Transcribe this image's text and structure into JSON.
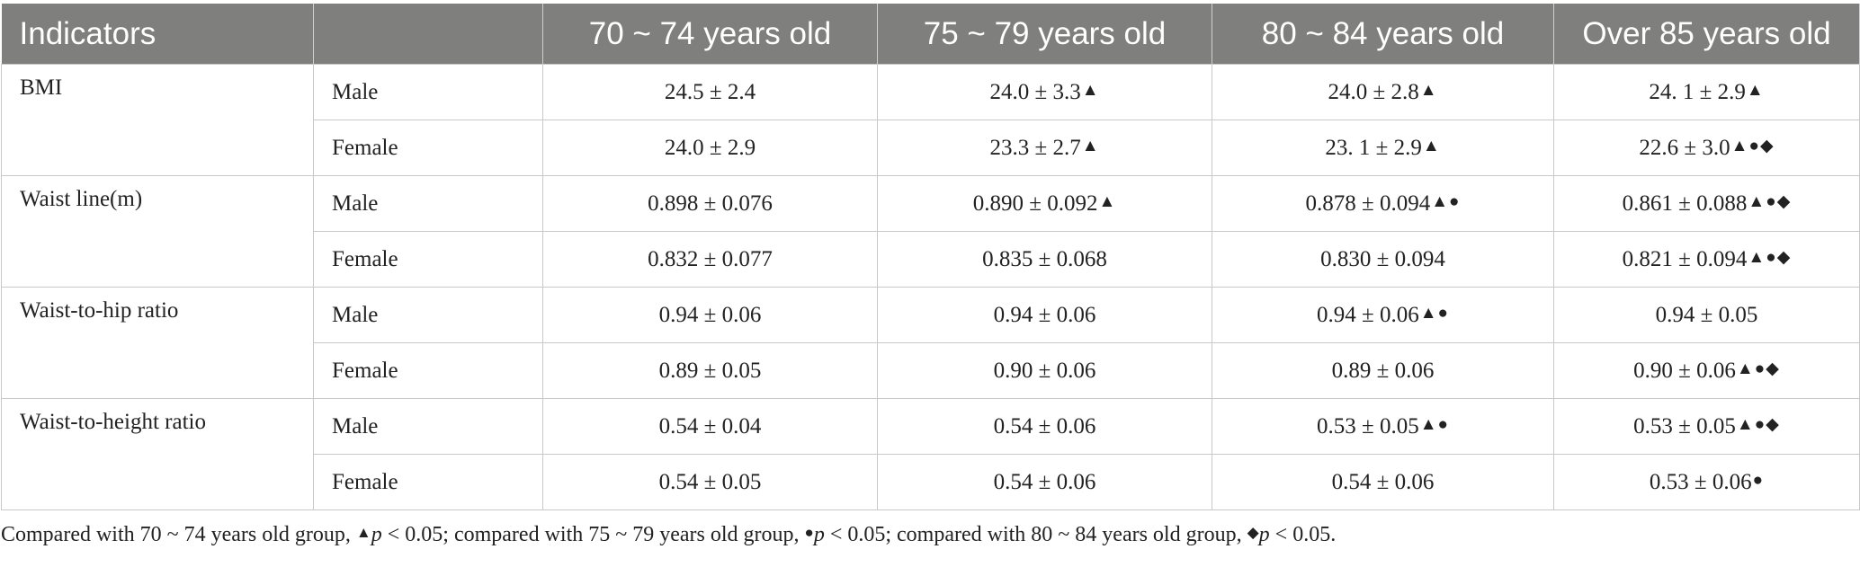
{
  "table": {
    "headers": [
      "Indicators",
      "",
      "70 ~ 74 years old",
      "75 ~ 79 years old",
      "80 ~ 84 years old",
      "Over 85 years old"
    ],
    "groups": [
      {
        "indicator": "BMI",
        "rows": [
          {
            "sex": "Male",
            "cells": [
              {
                "value": "24.5 ± 2.4",
                "marks": ""
              },
              {
                "value": "24.0 ± 3.3",
                "marks": "▲"
              },
              {
                "value": "24.0 ± 2.8",
                "marks": "▲"
              },
              {
                "value": "24. 1 ± 2.9",
                "marks": "▲"
              }
            ]
          },
          {
            "sex": "Female",
            "cells": [
              {
                "value": "24.0 ± 2.9",
                "marks": ""
              },
              {
                "value": "23.3 ± 2.7",
                "marks": "▲"
              },
              {
                "value": "23. 1 ± 2.9",
                "marks": "▲"
              },
              {
                "value": "22.6 ± 3.0",
                "marks": "▲●◆"
              }
            ]
          }
        ]
      },
      {
        "indicator": "Waist line(m)",
        "rows": [
          {
            "sex": "Male",
            "cells": [
              {
                "value": "0.898 ± 0.076",
                "marks": ""
              },
              {
                "value": "0.890 ± 0.092",
                "marks": "▲"
              },
              {
                "value": "0.878 ± 0.094",
                "marks": "▲●"
              },
              {
                "value": "0.861 ± 0.088",
                "marks": "▲●◆"
              }
            ]
          },
          {
            "sex": "Female",
            "cells": [
              {
                "value": "0.832 ± 0.077",
                "marks": ""
              },
              {
                "value": "0.835 ± 0.068",
                "marks": ""
              },
              {
                "value": "0.830 ± 0.094",
                "marks": ""
              },
              {
                "value": "0.821 ± 0.094",
                "marks": "▲●◆"
              }
            ]
          }
        ]
      },
      {
        "indicator": "Waist-to-hip ratio",
        "rows": [
          {
            "sex": "Male",
            "cells": [
              {
                "value": "0.94 ± 0.06",
                "marks": ""
              },
              {
                "value": "0.94 ± 0.06",
                "marks": ""
              },
              {
                "value": "0.94 ± 0.06",
                "marks": "▲●"
              },
              {
                "value": "0.94 ± 0.05",
                "marks": ""
              }
            ]
          },
          {
            "sex": "Female",
            "cells": [
              {
                "value": "0.89 ± 0.05",
                "marks": ""
              },
              {
                "value": "0.90 ± 0.06",
                "marks": ""
              },
              {
                "value": "0.89 ± 0.06",
                "marks": ""
              },
              {
                "value": "0.90 ± 0.06",
                "marks": "▲●◆"
              }
            ]
          }
        ]
      },
      {
        "indicator": "Waist-to-height ratio",
        "rows": [
          {
            "sex": "Male",
            "cells": [
              {
                "value": "0.54 ± 0.04",
                "marks": ""
              },
              {
                "value": "0.54 ± 0.06",
                "marks": ""
              },
              {
                "value": "0.53 ± 0.05",
                "marks": "▲●"
              },
              {
                "value": "0.53 ± 0.05",
                "marks": "▲●◆"
              }
            ]
          },
          {
            "sex": "Female",
            "cells": [
              {
                "value": "0.54 ± 0.05",
                "marks": ""
              },
              {
                "value": "0.54 ± 0.06",
                "marks": ""
              },
              {
                "value": "0.54 ± 0.06",
                "marks": ""
              },
              {
                "value": "0.53 ± 0.06",
                "marks": "●"
              }
            ]
          }
        ]
      }
    ]
  },
  "footnote": {
    "part1": "Compared with 70 ~ 74 years old group, ",
    "mark1": "▲",
    "p1": "p",
    "cond1": " < 0.05; compared with 75 ~ 79 years old group, ",
    "mark2": "●",
    "p2": "p",
    "cond2": " < 0.05; compared with 80 ~ 84 years old group, ",
    "mark3": "◆",
    "p3": "p",
    "cond3": " < 0.05."
  },
  "colors": {
    "header_bg": "#7f7f7e",
    "header_text": "#ffffff",
    "grid": "#c8c8c8"
  }
}
